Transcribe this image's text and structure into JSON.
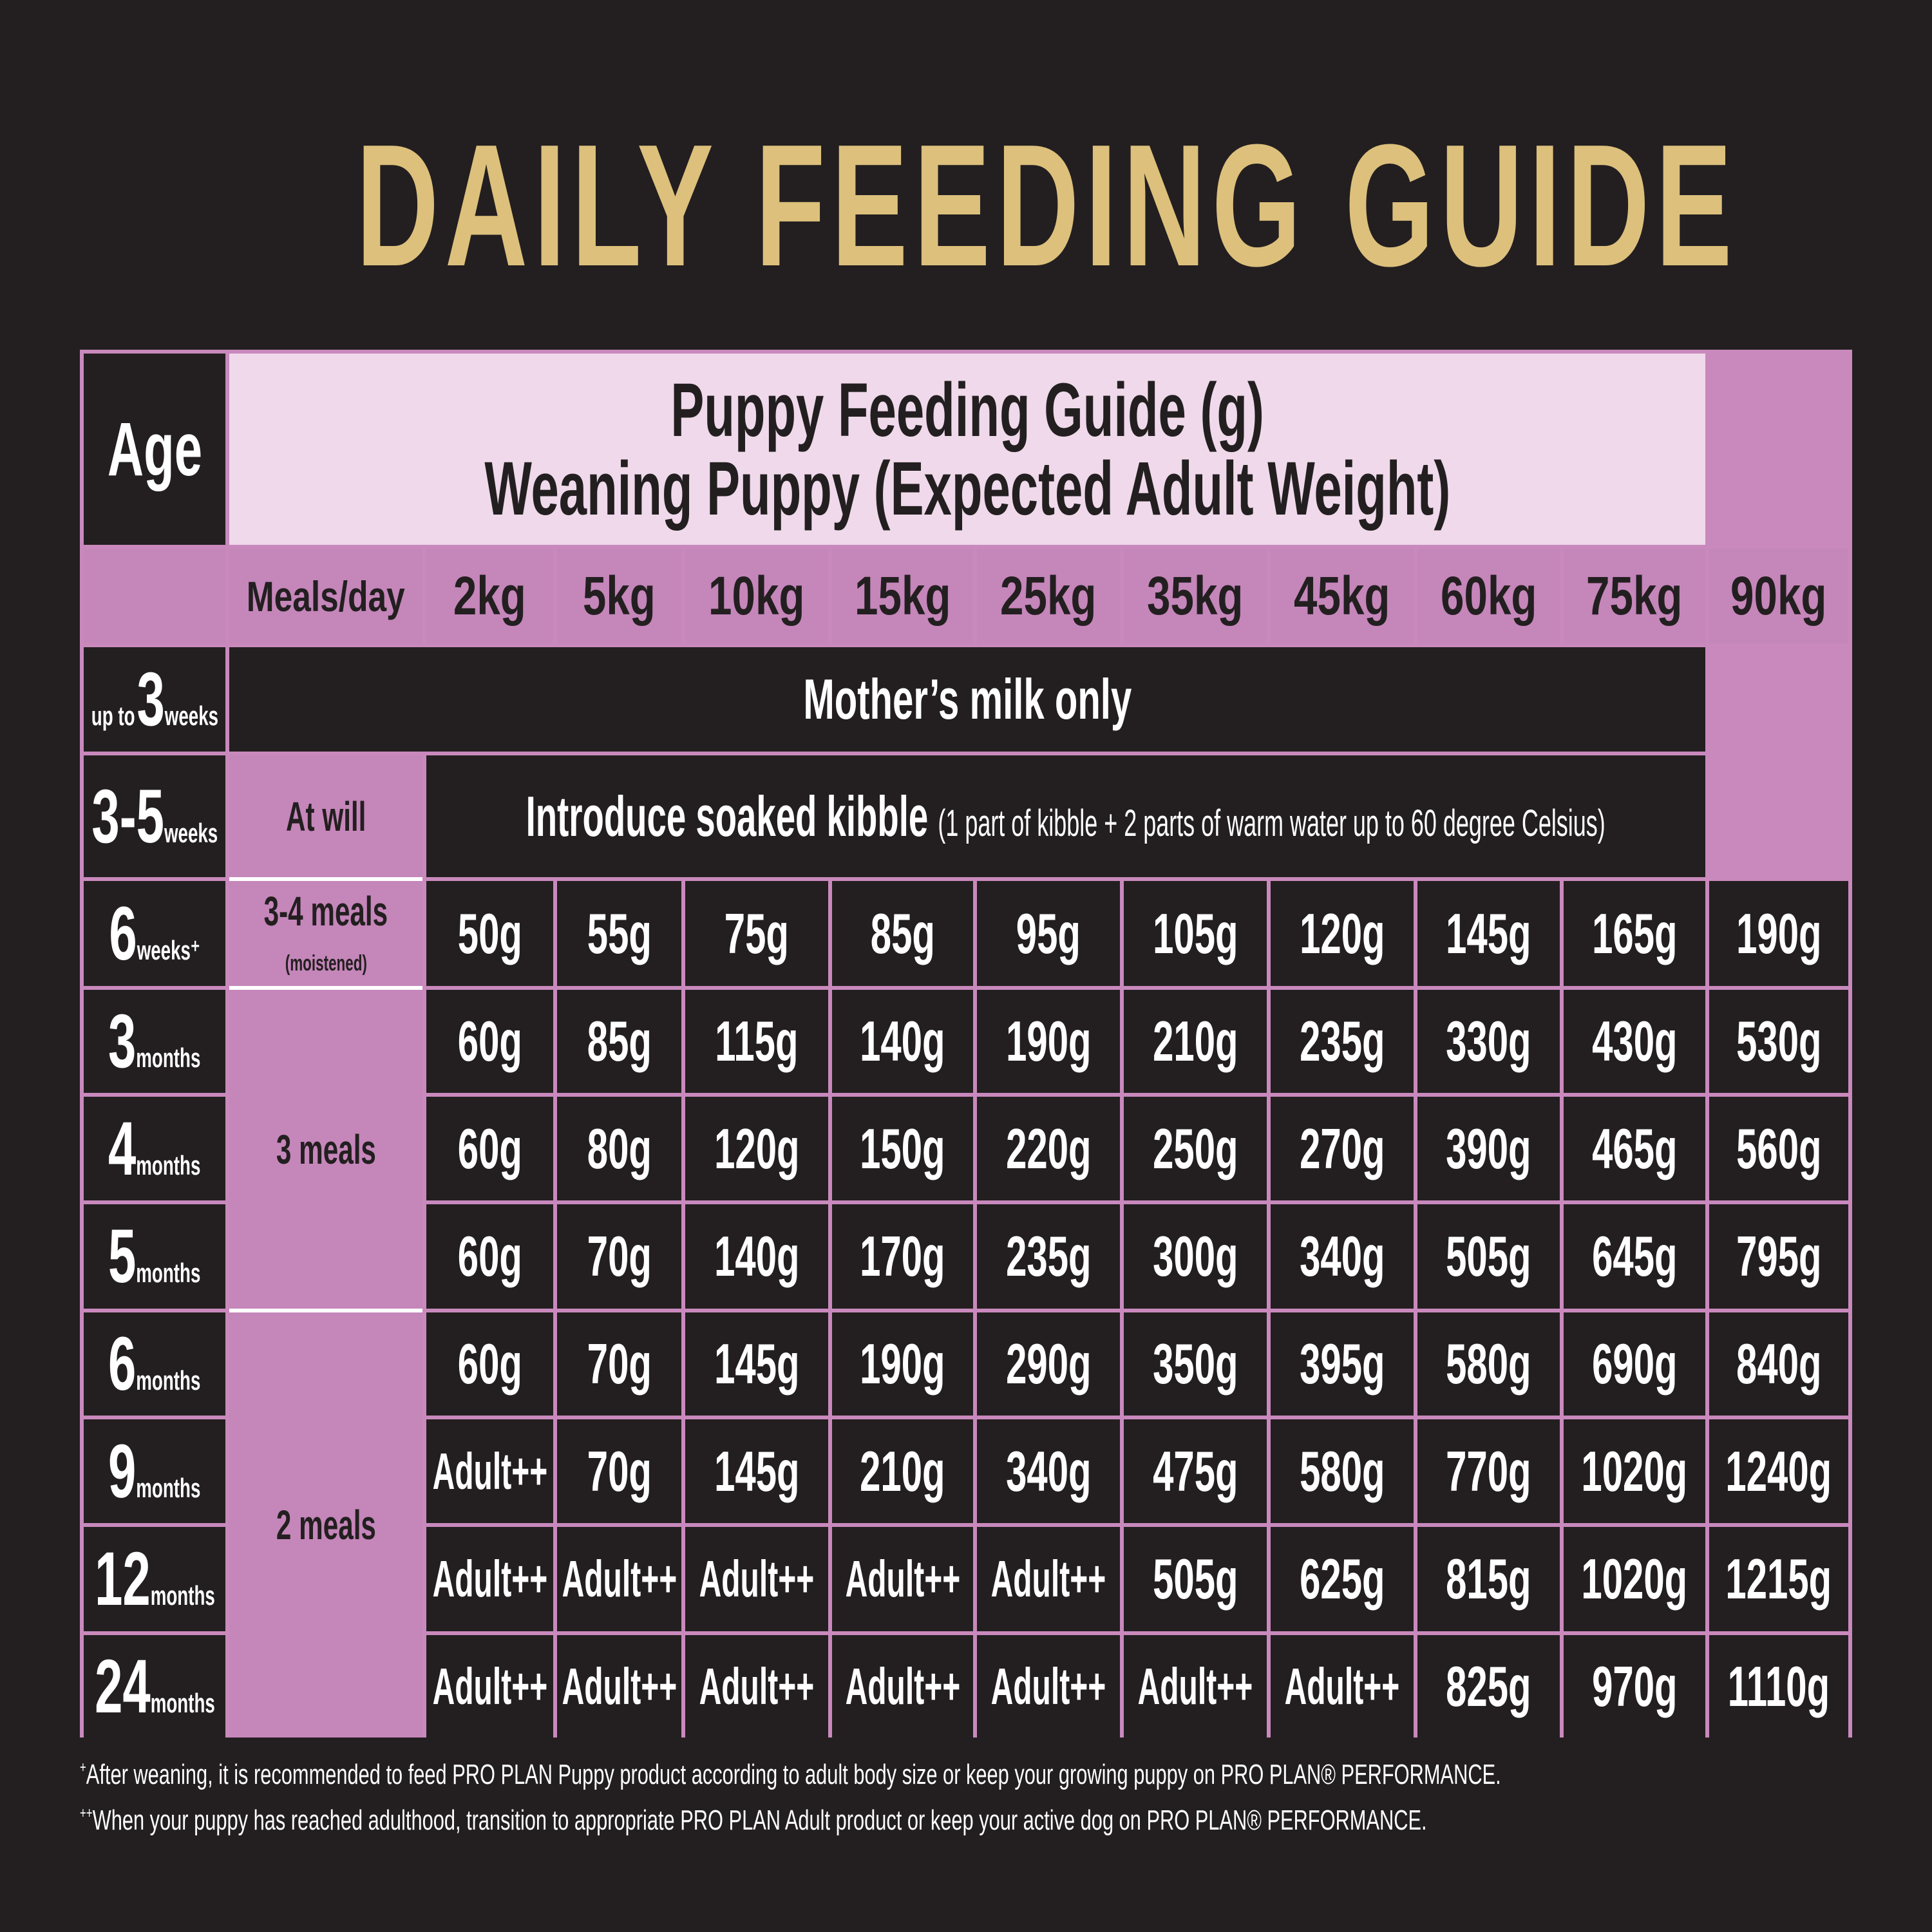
{
  "title": "DAILY FEEDING GUIDE",
  "header": {
    "age_label": "Age",
    "line1": "Puppy Feeding Guide (g)",
    "line2": "Weaning Puppy (Expected Adult Weight)",
    "meals_label": "Meals/day",
    "weights": [
      "2kg",
      "5kg",
      "10kg",
      "15kg",
      "25kg",
      "35kg",
      "45kg",
      "60kg",
      "75kg",
      "90kg"
    ]
  },
  "colors": {
    "background": "#231f20",
    "title": "#dcc07c",
    "header_light": "#efd9ea",
    "pink": "#c586ba",
    "grid_line": "#c989bd"
  },
  "rows": [
    {
      "age_prefix": "up to",
      "age_num": "3",
      "age_unit": "weeks",
      "span_text": "Mother’s milk only"
    },
    {
      "age_num": "3-5",
      "age_unit": "weeks",
      "meals": "At will",
      "span_text": "Introduce soaked kibble",
      "span_note": "(1 part of kibble + 2 parts of warm water up to 60 degree Celsius)"
    },
    {
      "age_num": "6",
      "age_unit": "weeks⁺",
      "meals": "3-4 meals",
      "meals_note": "(moistened)",
      "values": [
        "50g",
        "55g",
        "75g",
        "85g",
        "95g",
        "105g",
        "120g",
        "145g",
        "165g",
        "190g"
      ]
    },
    {
      "age_num": "3",
      "age_unit": "months",
      "meals": "3 meals",
      "values": [
        "60g",
        "85g",
        "115g",
        "140g",
        "190g",
        "210g",
        "235g",
        "330g",
        "430g",
        "530g"
      ]
    },
    {
      "age_num": "4",
      "age_unit": "months",
      "values": [
        "60g",
        "80g",
        "120g",
        "150g",
        "220g",
        "250g",
        "270g",
        "390g",
        "465g",
        "560g"
      ]
    },
    {
      "age_num": "5",
      "age_unit": "months",
      "values": [
        "60g",
        "70g",
        "140g",
        "170g",
        "235g",
        "300g",
        "340g",
        "505g",
        "645g",
        "795g"
      ]
    },
    {
      "age_num": "6",
      "age_unit": "months",
      "meals": "2 meals",
      "values": [
        "60g",
        "70g",
        "145g",
        "190g",
        "290g",
        "350g",
        "395g",
        "580g",
        "690g",
        "840g"
      ]
    },
    {
      "age_num": "9",
      "age_unit": "months",
      "values": [
        "Adult++",
        "70g",
        "145g",
        "210g",
        "340g",
        "475g",
        "580g",
        "770g",
        "1020g",
        "1240g"
      ]
    },
    {
      "age_num": "12",
      "age_unit": "months",
      "values": [
        "Adult++",
        "Adult++",
        "Adult++",
        "Adult++",
        "Adult++",
        "505g",
        "625g",
        "815g",
        "1020g",
        "1215g"
      ]
    },
    {
      "age_num": "24",
      "age_unit": "months",
      "values": [
        "Adult++",
        "Adult++",
        "Adult++",
        "Adult++",
        "Adult++",
        "Adult++",
        "Adult++",
        "825g",
        "970g",
        "1110g"
      ]
    }
  ],
  "footnotes": [
    {
      "mark": "+",
      "text": "After weaning, it is recommended to feed PRO PLAN Puppy product according to adult body size or keep your growing puppy on PRO PLAN® PERFORMANCE."
    },
    {
      "mark": "++",
      "text": "When your puppy has reached adulthood, transition to appropriate PRO PLAN Adult product or keep your active dog on PRO PLAN® PERFORMANCE."
    }
  ]
}
